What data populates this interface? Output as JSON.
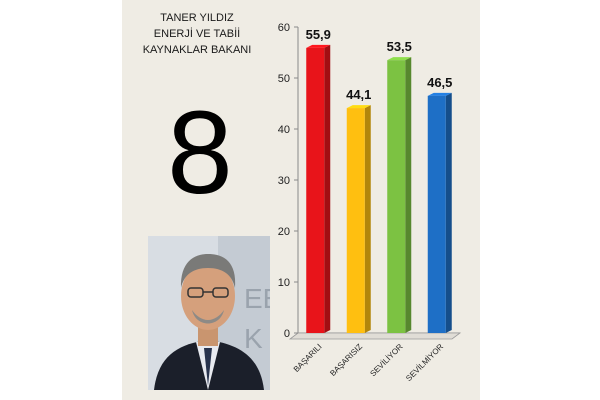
{
  "figure": {
    "title_lines": [
      "TANER YILDIZ",
      "ENERJİ VE TABİİ",
      "KAYNAKLAR BAKANI"
    ],
    "rank": "8",
    "photo_icon": "portrait-photo"
  },
  "chart_data": {
    "type": "bar",
    "categories": [
      "BAŞARILI",
      "BAŞARISIZ",
      "SEVİLİYOR",
      "SEVİLMİYOR"
    ],
    "values": [
      55.9,
      44.1,
      53.5,
      46.5
    ],
    "value_labels": [
      "55,9",
      "44,1",
      "53,5",
      "46,5"
    ],
    "colors": [
      "#e8141a",
      "#ffbf10",
      "#7cc242",
      "#1e6fc6"
    ],
    "ylim": [
      0,
      60
    ],
    "yticks": [
      0,
      10,
      20,
      30,
      40,
      50,
      60
    ],
    "grid": false,
    "legend": "none"
  }
}
